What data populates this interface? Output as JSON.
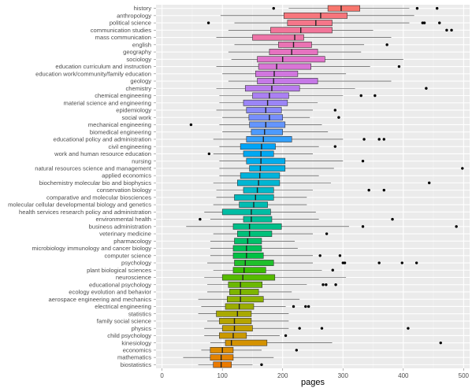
{
  "chart_data": {
    "type": "boxplot",
    "xlabel": "pages",
    "ylabel": "",
    "xlim": [
      -10,
      510
    ],
    "xticks": [
      0,
      100,
      200,
      300,
      400,
      500
    ],
    "grid": true,
    "legend": "none",
    "panel_background": "#ebebeb",
    "categories": [
      {
        "name": "history",
        "color": "#F8766D",
        "min": 210,
        "q1": 275,
        "median": 297,
        "q3": 328,
        "max": 410,
        "outliers": [
          185,
          423,
          456
        ]
      },
      {
        "name": "anthropology",
        "color": "#F7767C",
        "min": 97,
        "q1": 202,
        "median": 263,
        "q3": 307,
        "max": 418,
        "outliers": []
      },
      {
        "name": "political science",
        "color": "#F5768A",
        "min": 120,
        "q1": 208,
        "median": 255,
        "q3": 282,
        "max": 410,
        "outliers": [
          77,
          432,
          435,
          460
        ]
      },
      {
        "name": "communication studies",
        "color": "#F27599",
        "min": 110,
        "q1": 180,
        "median": 230,
        "q3": 282,
        "max": 350,
        "outliers": [
          472,
          480
        ]
      },
      {
        "name": "mass communication",
        "color": "#EE74A7",
        "min": 90,
        "q1": 150,
        "median": 220,
        "q3": 235,
        "max": 380,
        "outliers": []
      },
      {
        "name": "english",
        "color": "#EA73B3",
        "min": 120,
        "q1": 193,
        "median": 218,
        "q3": 248,
        "max": 335,
        "outliers": [
          373
        ]
      },
      {
        "name": "geography",
        "color": "#E673C0",
        "min": 110,
        "q1": 178,
        "median": 215,
        "q3": 258,
        "max": 330,
        "outliers": []
      },
      {
        "name": "sociology",
        "color": "#E073CB",
        "min": 115,
        "q1": 158,
        "median": 200,
        "q3": 270,
        "max": 400,
        "outliers": []
      },
      {
        "name": "education curriculum and instruction",
        "color": "#D975D6",
        "min": 90,
        "q1": 160,
        "median": 190,
        "q3": 247,
        "max": 345,
        "outliers": [
          393
        ]
      },
      {
        "name": "education work/community/family education",
        "color": "#D176DF",
        "min": 100,
        "q1": 155,
        "median": 186,
        "q3": 225,
        "max": 305,
        "outliers": []
      },
      {
        "name": "geology",
        "color": "#C679E7",
        "min": 110,
        "q1": 158,
        "median": 185,
        "q3": 258,
        "max": 380,
        "outliers": []
      },
      {
        "name": "chemistry",
        "color": "#B97CEE",
        "min": 90,
        "q1": 138,
        "median": 182,
        "q3": 228,
        "max": 320,
        "outliers": [
          438
        ]
      },
      {
        "name": "chemical engineering",
        "color": "#AB80F3",
        "min": 95,
        "q1": 150,
        "median": 178,
        "q3": 210,
        "max": 300,
        "outliers": [
          330,
          353
        ]
      },
      {
        "name": "material science and engineering",
        "color": "#9B85F7",
        "min": 95,
        "q1": 135,
        "median": 175,
        "q3": 208,
        "max": 258,
        "outliers": []
      },
      {
        "name": "epidemiology",
        "color": "#8A8AFA",
        "min": 90,
        "q1": 140,
        "median": 172,
        "q3": 198,
        "max": 250,
        "outliers": [
          287
        ]
      },
      {
        "name": "social work",
        "color": "#778FFC",
        "min": 100,
        "q1": 144,
        "median": 178,
        "q3": 200,
        "max": 245,
        "outliers": [
          293
        ]
      },
      {
        "name": "mechanical engineering",
        "color": "#6495FD",
        "min": 95,
        "q1": 145,
        "median": 172,
        "q3": 204,
        "max": 265,
        "outliers": [
          48
        ]
      },
      {
        "name": "biomedical engineering",
        "color": "#4D9AFD",
        "min": 100,
        "q1": 148,
        "median": 170,
        "q3": 200,
        "max": 275,
        "outliers": []
      },
      {
        "name": "educational policy and administration",
        "color": "#33A0FB",
        "min": 85,
        "q1": 140,
        "median": 168,
        "q3": 215,
        "max": 300,
        "outliers": [
          335,
          360,
          368
        ]
      },
      {
        "name": "civil engineering",
        "color": "#00A4F7",
        "min": 95,
        "q1": 130,
        "median": 165,
        "q3": 188,
        "max": 260,
        "outliers": [
          287
        ]
      },
      {
        "name": "work and human resource education",
        "color": "#00A8F2",
        "min": 85,
        "q1": 135,
        "median": 164,
        "q3": 185,
        "max": 250,
        "outliers": [
          78
        ]
      },
      {
        "name": "nursing",
        "color": "#00ACEC",
        "min": 95,
        "q1": 140,
        "median": 164,
        "q3": 204,
        "max": 300,
        "outliers": [
          333
        ]
      },
      {
        "name": "natural resources science and management",
        "color": "#00B0E4",
        "min": 95,
        "q1": 145,
        "median": 163,
        "q3": 204,
        "max": 285,
        "outliers": [
          498
        ]
      },
      {
        "name": "applied economics",
        "color": "#00B3DC",
        "min": 95,
        "q1": 130,
        "median": 162,
        "q3": 195,
        "max": 260,
        "outliers": []
      },
      {
        "name": "biochemistry molecular bio and biophysics",
        "color": "#00B6D3",
        "min": 85,
        "q1": 125,
        "median": 160,
        "q3": 195,
        "max": 280,
        "outliers": [
          443
        ]
      },
      {
        "name": "conservation biology",
        "color": "#00B8C8",
        "min": 90,
        "q1": 135,
        "median": 158,
        "q3": 185,
        "max": 250,
        "outliers": [
          343,
          368
        ]
      },
      {
        "name": "comparative and molecular biosciences",
        "color": "#00BABD",
        "min": 90,
        "q1": 120,
        "median": 155,
        "q3": 185,
        "max": 240,
        "outliers": []
      },
      {
        "name": "molecular cellular developmental biology and genetics",
        "color": "#00BCB1",
        "min": 85,
        "q1": 128,
        "median": 152,
        "q3": 175,
        "max": 240,
        "outliers": []
      },
      {
        "name": "health services research policy and administration",
        "color": "#00BDA4",
        "min": 70,
        "q1": 100,
        "median": 148,
        "q3": 180,
        "max": 255,
        "outliers": []
      },
      {
        "name": "environmental health",
        "color": "#00BE97",
        "min": 80,
        "q1": 135,
        "median": 148,
        "q3": 182,
        "max": 260,
        "outliers": [
          63,
          382
        ]
      },
      {
        "name": "business administration",
        "color": "#00BF89",
        "min": 40,
        "q1": 118,
        "median": 145,
        "q3": 198,
        "max": 310,
        "outliers": [
          333,
          488
        ]
      },
      {
        "name": "veterinary medicine",
        "color": "#00C07A",
        "min": 85,
        "q1": 125,
        "median": 145,
        "q3": 182,
        "max": 250,
        "outliers": [
          273
        ]
      },
      {
        "name": "pharmacology",
        "color": "#00C06A",
        "min": 80,
        "q1": 120,
        "median": 142,
        "q3": 165,
        "max": 220,
        "outliers": []
      },
      {
        "name": "microbiology immunology and cancer biology",
        "color": "#00C058",
        "min": 80,
        "q1": 118,
        "median": 140,
        "q3": 165,
        "max": 225,
        "outliers": []
      },
      {
        "name": "computer science",
        "color": "#00C044",
        "min": 80,
        "q1": 118,
        "median": 140,
        "q3": 168,
        "max": 250,
        "outliers": [
          262,
          295
        ]
      },
      {
        "name": "psychology",
        "color": "#1FBF2B",
        "min": 75,
        "q1": 120,
        "median": 138,
        "q3": 185,
        "max": 250,
        "outliers": [
          300,
          303,
          360,
          398,
          422
        ]
      },
      {
        "name": "plant biological sciences",
        "color": "#3ABD00",
        "min": 85,
        "q1": 118,
        "median": 136,
        "q3": 172,
        "max": 265,
        "outliers": [
          283
        ]
      },
      {
        "name": "neuroscience",
        "color": "#56BB00",
        "min": 70,
        "q1": 100,
        "median": 134,
        "q3": 187,
        "max": 305,
        "outliers": []
      },
      {
        "name": "educational psychology",
        "color": "#6BB800",
        "min": 75,
        "q1": 110,
        "median": 130,
        "q3": 166,
        "max": 240,
        "outliers": [
          267,
          272,
          288
        ]
      },
      {
        "name": "ecology evolution and behavior",
        "color": "#7DB500",
        "min": 75,
        "q1": 112,
        "median": 130,
        "q3": 160,
        "max": 215,
        "outliers": []
      },
      {
        "name": "aerospace engineering and mechanics",
        "color": "#8DB100",
        "min": 60,
        "q1": 108,
        "median": 130,
        "q3": 168,
        "max": 228,
        "outliers": []
      },
      {
        "name": "electrical engineering",
        "color": "#9BAD00",
        "min": 65,
        "q1": 105,
        "median": 128,
        "q3": 152,
        "max": 205,
        "outliers": [
          218,
          238,
          243
        ]
      },
      {
        "name": "statistics",
        "color": "#A9A900",
        "min": 60,
        "q1": 90,
        "median": 125,
        "q3": 148,
        "max": 210,
        "outliers": []
      },
      {
        "name": "family social science",
        "color": "#B5A400",
        "min": 75,
        "q1": 95,
        "median": 120,
        "q3": 148,
        "max": 210,
        "outliers": []
      },
      {
        "name": "physics",
        "color": "#C19F00",
        "min": 70,
        "q1": 100,
        "median": 120,
        "q3": 150,
        "max": 210,
        "outliers": [
          228,
          265,
          408
        ]
      },
      {
        "name": "child psychology",
        "color": "#CB9900",
        "min": 70,
        "q1": 95,
        "median": 118,
        "q3": 140,
        "max": 195,
        "outliers": [
          205
        ]
      },
      {
        "name": "kinesiology",
        "color": "#D49200",
        "min": 80,
        "q1": 105,
        "median": 115,
        "q3": 174,
        "max": 282,
        "outliers": [
          462
        ]
      },
      {
        "name": "economics",
        "color": "#DD8B00",
        "min": 65,
        "q1": 80,
        "median": 100,
        "q3": 118,
        "max": 165,
        "outliers": [
          223
        ]
      },
      {
        "name": "mathematics",
        "color": "#E48300",
        "min": 35,
        "q1": 80,
        "median": 98,
        "q3": 118,
        "max": 185,
        "outliers": []
      },
      {
        "name": "biostatistics",
        "color": "#EA7A00",
        "min": 60,
        "q1": 85,
        "median": 98,
        "q3": 115,
        "max": 150,
        "outliers": [
          165
        ]
      }
    ]
  }
}
